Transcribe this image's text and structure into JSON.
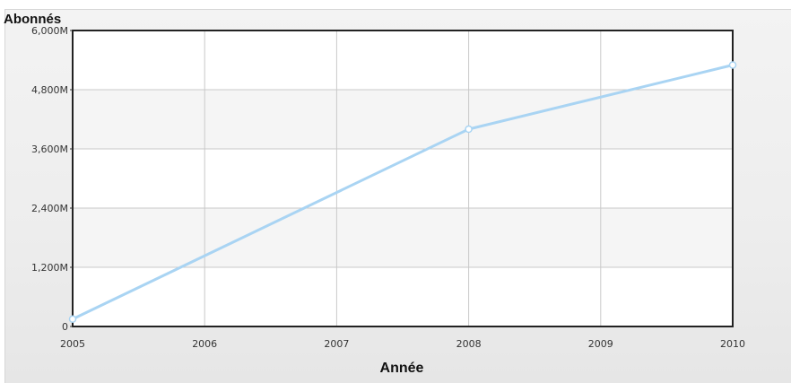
{
  "chart_data": {
    "type": "line",
    "title": "",
    "xlabel": "Année",
    "ylabel": "Abonnés",
    "x": [
      2005,
      2006,
      2007,
      2008,
      2009,
      2010
    ],
    "xlim": [
      2005,
      2010
    ],
    "ylim": [
      0,
      6000
    ],
    "y_tick_values": [
      0,
      1200,
      2400,
      3600,
      4800,
      6000
    ],
    "y_tick_labels": [
      "0",
      "1,200M",
      "2,400M",
      "3,600M",
      "4,800M",
      "6,000M"
    ],
    "x_tick_labels": [
      "2005",
      "2006",
      "2007",
      "2008",
      "2009",
      "2010"
    ],
    "series": [
      {
        "values": [
          {
            "x": 2005,
            "y": 150
          },
          {
            "x": 2008,
            "y": 4000
          },
          {
            "x": 2010,
            "y": 5300
          }
        ],
        "color": "#a9d4f3",
        "marker_color": "#ffffff"
      }
    ],
    "grid": true,
    "legend": "none"
  }
}
